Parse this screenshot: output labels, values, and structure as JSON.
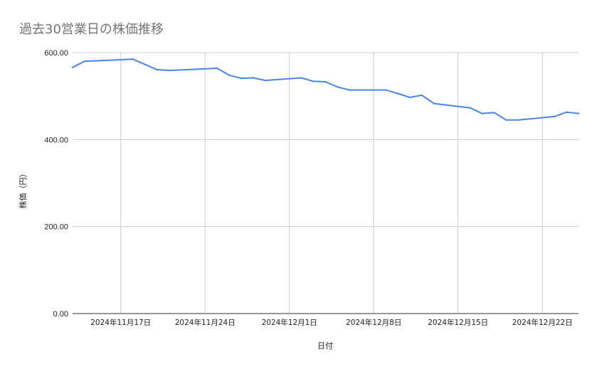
{
  "chart_data": {
    "type": "line",
    "title": "過去30営業日の株価推移",
    "xlabel": "日付",
    "ylabel": "株価（円）",
    "ylim": [
      0,
      600
    ],
    "yticks": [
      0,
      200,
      400,
      600
    ],
    "ytick_labels": [
      "0.00",
      "200.00",
      "400.00",
      "600.00"
    ],
    "x_range": [
      "2024-11-13",
      "2024-12-25"
    ],
    "xticks": [
      "2024-11-17",
      "2024-11-24",
      "2024-12-01",
      "2024-12-08",
      "2024-12-15",
      "2024-12-22"
    ],
    "xtick_labels": [
      "2024年11月17日",
      "2024年11月24日",
      "2024年12月1日",
      "2024年12月8日",
      "2024年12月15日",
      "2024年12月22日"
    ],
    "grid": true,
    "color": "#4a86e8",
    "series": [
      {
        "x": [
          "2024-11-13",
          "2024-11-14",
          "2024-11-18",
          "2024-11-20",
          "2024-11-21",
          "2024-11-25",
          "2024-11-26",
          "2024-11-27",
          "2024-11-28",
          "2024-11-29",
          "2024-12-02",
          "2024-12-03",
          "2024-12-04",
          "2024-12-05",
          "2024-12-06",
          "2024-12-09",
          "2024-12-10",
          "2024-12-11",
          "2024-12-12",
          "2024-12-13",
          "2024-12-16",
          "2024-12-17",
          "2024-12-18",
          "2024-12-19",
          "2024-12-20",
          "2024-12-23",
          "2024-12-24",
          "2024-12-25"
        ],
        "values": [
          566,
          580,
          585,
          561,
          559,
          564,
          548,
          541,
          542,
          536,
          542,
          534,
          533,
          521,
          514,
          514,
          506,
          497,
          502,
          483,
          473,
          460,
          462,
          445,
          445,
          453,
          463,
          460
        ]
      }
    ]
  }
}
